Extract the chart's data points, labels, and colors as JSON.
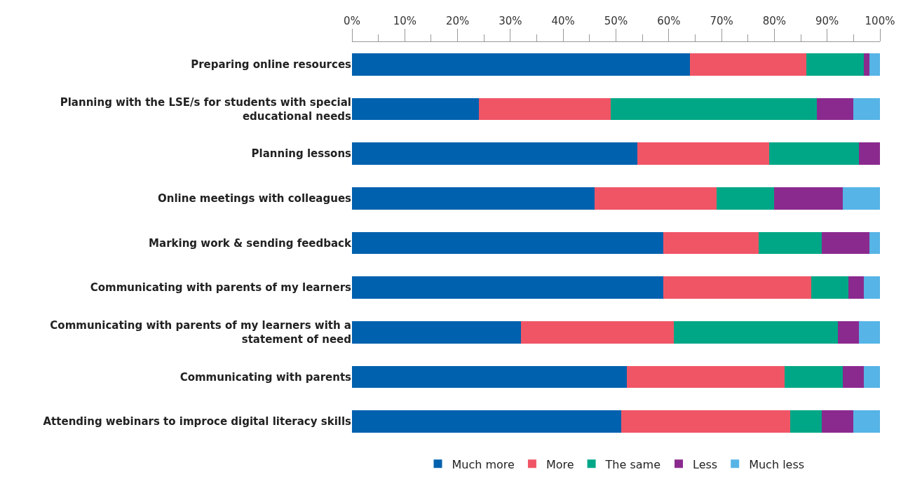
{
  "chart_data": {
    "type": "bar",
    "orientation": "horizontal",
    "stacked": true,
    "categories": [
      "Preparing online resources",
      "Planning with the LSE/s for students with special educational needs",
      "Planning lessons",
      "Online meetings with colleagues",
      "Marking work & sending feedback",
      "Communicating with parents of my learners",
      "Communicating with parents of my learners with a statement of need",
      "Communicating with parents",
      "Attending webinars to improce digital literacy skills"
    ],
    "series": [
      {
        "name": "Much more",
        "color": "#0061ae",
        "values": [
          64,
          24,
          54,
          46,
          59,
          59,
          32,
          52,
          51
        ]
      },
      {
        "name": "More",
        "color": "#f05566",
        "values": [
          22,
          25,
          25,
          23,
          18,
          28,
          29,
          30,
          32
        ]
      },
      {
        "name": "The same",
        "color": "#00a786",
        "values": [
          11,
          39,
          17,
          11,
          12,
          7,
          31,
          11,
          6
        ]
      },
      {
        "name": "Less",
        "color": "#8b2a8e",
        "values": [
          1,
          7,
          4,
          13,
          9,
          3,
          4,
          4,
          6
        ]
      },
      {
        "name": "Much less",
        "color": "#56b4e6",
        "values": [
          2,
          5,
          0,
          7,
          2,
          3,
          4,
          3,
          5
        ]
      }
    ],
    "xlim": [
      0,
      100
    ],
    "xticks": [
      {
        "value": 0,
        "label": "0%"
      },
      {
        "value": 5,
        "label": null
      },
      {
        "value": 10,
        "label": "10%"
      },
      {
        "value": 15,
        "label": null
      },
      {
        "value": 20,
        "label": "20%"
      },
      {
        "value": 25,
        "label": null
      },
      {
        "value": 30,
        "label": "30%"
      },
      {
        "value": 35,
        "label": null
      },
      {
        "value": 40,
        "label": "40%"
      },
      {
        "value": 45,
        "label": null
      },
      {
        "value": 50,
        "label": "50%"
      },
      {
        "value": 55,
        "label": null
      },
      {
        "value": 60,
        "label": "60%"
      },
      {
        "value": 65,
        "label": null
      },
      {
        "value": 70,
        "label": "70%"
      },
      {
        "value": 75,
        "label": null
      },
      {
        "value": 80,
        "label": "80%"
      },
      {
        "value": 85,
        "label": null
      },
      {
        "value": 90,
        "label": "90%"
      },
      {
        "value": 95,
        "label": null
      },
      {
        "value": 100,
        "label": "100%"
      }
    ],
    "legend": "bottom"
  }
}
